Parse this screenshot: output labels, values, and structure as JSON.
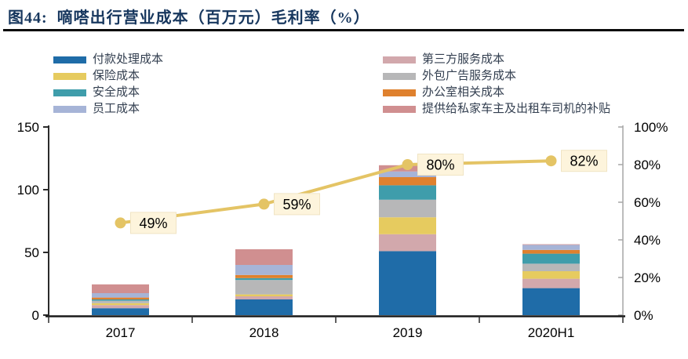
{
  "figure": {
    "title": "图44:  嘀嗒出行营业成本（百万元）毛利率（%）"
  },
  "legend": {
    "columns": [
      [
        {
          "label": "付款处理成本",
          "color": "#1F6CA8"
        },
        {
          "label": "保险成本",
          "color": "#E6CB5F"
        },
        {
          "label": "安全成本",
          "color": "#3F9DAB"
        },
        {
          "label": "员工成本",
          "color": "#A6B4D7"
        }
      ],
      [
        {
          "label": "第三方服务成本",
          "color": "#D2A8AC"
        },
        {
          "label": "外包广告服务成本",
          "color": "#B7B7B8"
        },
        {
          "label": "办公室相关成本",
          "color": "#DF812E"
        },
        {
          "label": "提供给私家车主及出租车司机的补贴",
          "color": "#D08F90"
        }
      ]
    ]
  },
  "chart_data": {
    "type": "bar",
    "subtype": "stacked-bar-with-line",
    "categories": [
      "2017",
      "2018",
      "2019",
      "2020H1"
    ],
    "series": [
      {
        "name": "付款处理成本",
        "color": "#1F6CA8",
        "values": [
          5.5,
          12.5,
          51,
          21.5
        ]
      },
      {
        "name": "第三方服务成本",
        "color": "#D2A8AC",
        "values": [
          2.5,
          2.5,
          13.5,
          7.5
        ]
      },
      {
        "name": "保险成本",
        "color": "#E6CB5F",
        "values": [
          1.5,
          1.5,
          13.5,
          6
        ]
      },
      {
        "name": "外包广告服务成本",
        "color": "#B7B7B8",
        "values": [
          2,
          11.5,
          14,
          6
        ]
      },
      {
        "name": "安全成本",
        "color": "#3F9DAB",
        "values": [
          1,
          1.5,
          11.5,
          8
        ]
      },
      {
        "name": "办公室相关成本",
        "color": "#DF812E",
        "values": [
          1.5,
          2.5,
          6.5,
          3
        ]
      },
      {
        "name": "员工成本",
        "color": "#A6B4D7",
        "values": [
          3.5,
          8,
          4.5,
          4
        ]
      },
      {
        "name": "提供给私家车主及出租车司机的补贴",
        "color": "#D08F90",
        "values": [
          7,
          12.5,
          5,
          0.5
        ]
      }
    ],
    "line_series": {
      "name": "毛利率",
      "color": "#E4C465",
      "values": [
        49,
        59,
        80,
        82
      ],
      "labels": [
        "49%",
        "59%",
        "80%",
        "82%"
      ],
      "label_bg": "#FDF4DC"
    },
    "left_axis": {
      "min": 0,
      "max": 150,
      "tick_values": [
        0,
        50,
        100,
        150
      ],
      "tick_labels": [
        "0",
        "50",
        "100",
        "150"
      ]
    },
    "right_axis": {
      "min": 0,
      "max": 100,
      "tick_values": [
        0,
        20,
        40,
        60,
        80,
        100
      ],
      "tick_labels": [
        "0%",
        "20%",
        "40%",
        "60%",
        "80%",
        "100%"
      ]
    },
    "grid": false,
    "legend_position": "top"
  }
}
